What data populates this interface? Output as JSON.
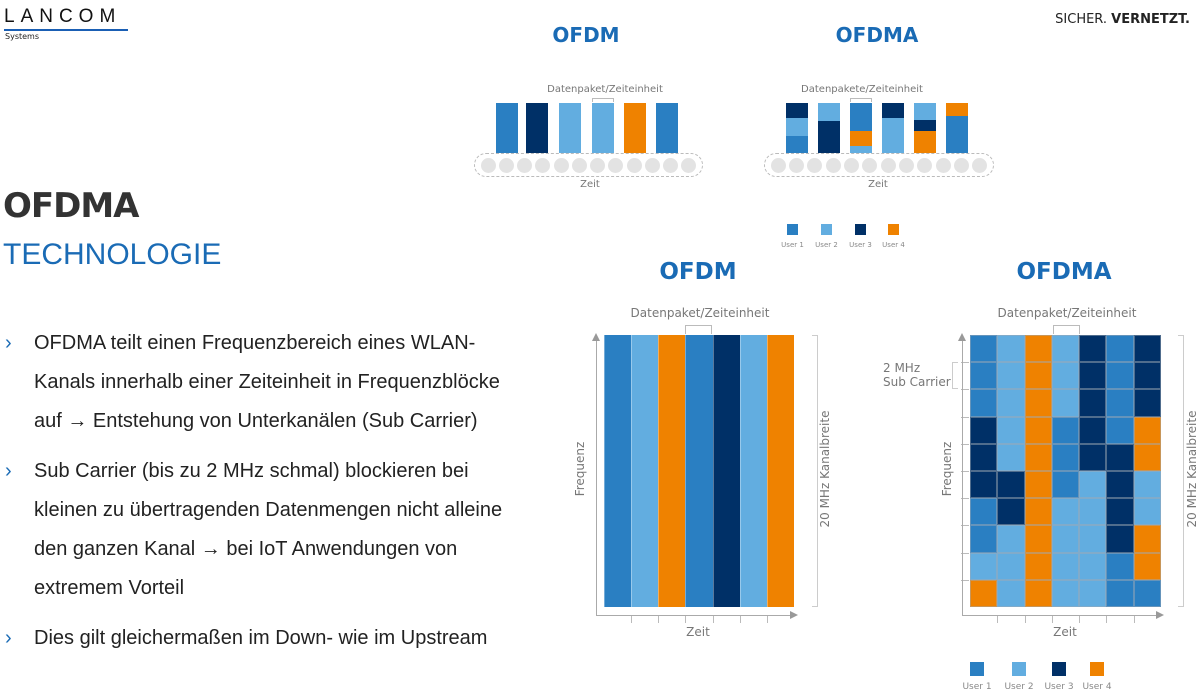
{
  "header": {
    "logo": "LANCOM",
    "logo_sub": "Systems",
    "tagline_a": "SICHER.",
    "tagline_b": "VERNETZT."
  },
  "heading": {
    "title": "OFDMA",
    "subtitle": "TECHNOLOGIE"
  },
  "bullets": [
    {
      "lines": [
        "OFDMA teilt einen Frequenzbereich eines WLAN-",
        "Kanals innerhalb einer Zeiteinheit in Frequenzblöcke",
        "auf → Entstehung von Unterkanälen (Sub Carrier)"
      ]
    },
    {
      "lines": [
        "Sub Carrier (bis zu 2 MHz schmal) blockieren bei",
        "kleinen zu übertragenden Datenmengen nicht alleine",
        "den ganzen Kanal → bei IoT Anwendungen von",
        "extremem Vorteil"
      ]
    },
    {
      "lines": [
        "Dies gilt gleichermaßen im Down- wie im Upstream"
      ]
    }
  ],
  "colors": {
    "1": "#2a7fc2",
    "2": "#62ade0",
    "3": "#003067",
    "4": "#ef8200",
    "accent": "#1a6bb5"
  },
  "legend": [
    "User 1",
    "User 2",
    "User 3",
    "User 4"
  ],
  "top_ofdm": {
    "title": "OFDM",
    "label": "Datenpaket/Zeiteinheit",
    "axis": "Zeit",
    "bars": [
      1,
      3,
      2,
      2,
      4,
      1
    ]
  },
  "top_ofdma": {
    "title": "OFDMA",
    "label": "Datenpakete/Zeiteinheit",
    "axis": "Zeit",
    "bars": [
      [
        [
          1,
          0.35
        ],
        [
          2,
          0.35
        ],
        [
          3,
          0.3
        ]
      ],
      [
        [
          3,
          0.65
        ],
        [
          2,
          0.35
        ]
      ],
      [
        [
          2,
          0.15
        ],
        [
          4,
          0.3
        ],
        [
          1,
          0.55
        ]
      ],
      [
        [
          2,
          0.7
        ],
        [
          3,
          0.3
        ]
      ],
      [
        [
          4,
          0.45
        ],
        [
          3,
          0.22
        ],
        [
          2,
          0.33
        ]
      ],
      [
        [
          1,
          0.75
        ],
        [
          4,
          0.25
        ]
      ]
    ]
  },
  "grid_ofdm": {
    "title": "OFDM",
    "label": "Datenpaket/Zeiteinheit",
    "x_axis": "Zeit",
    "y_axis": "Frequenz",
    "bandwidth": "20 MHz Kanalbreite",
    "columns": [
      1,
      2,
      4,
      1,
      3,
      2,
      4
    ]
  },
  "grid_ofdma": {
    "title": "OFDMA",
    "label": "Datenpaket/Zeiteinheit",
    "x_axis": "Zeit",
    "y_axis": "Frequenz",
    "bandwidth": "20 MHz Kanalbreite",
    "subcarrier": [
      "2 MHz",
      "Sub Carrier"
    ],
    "columns": [
      [
        1,
        1,
        1,
        3,
        3,
        3,
        1,
        1,
        2,
        4
      ],
      [
        2,
        2,
        2,
        2,
        2,
        3,
        3,
        2,
        2,
        2
      ],
      [
        4,
        4,
        4,
        4,
        4,
        4,
        4,
        4,
        4,
        4
      ],
      [
        2,
        2,
        2,
        1,
        1,
        1,
        2,
        2,
        2,
        2
      ],
      [
        3,
        3,
        3,
        3,
        3,
        2,
        2,
        2,
        2,
        2
      ],
      [
        1,
        1,
        1,
        1,
        3,
        3,
        3,
        3,
        1,
        1
      ],
      [
        3,
        3,
        3,
        4,
        4,
        2,
        2,
        4,
        4,
        1
      ]
    ]
  }
}
